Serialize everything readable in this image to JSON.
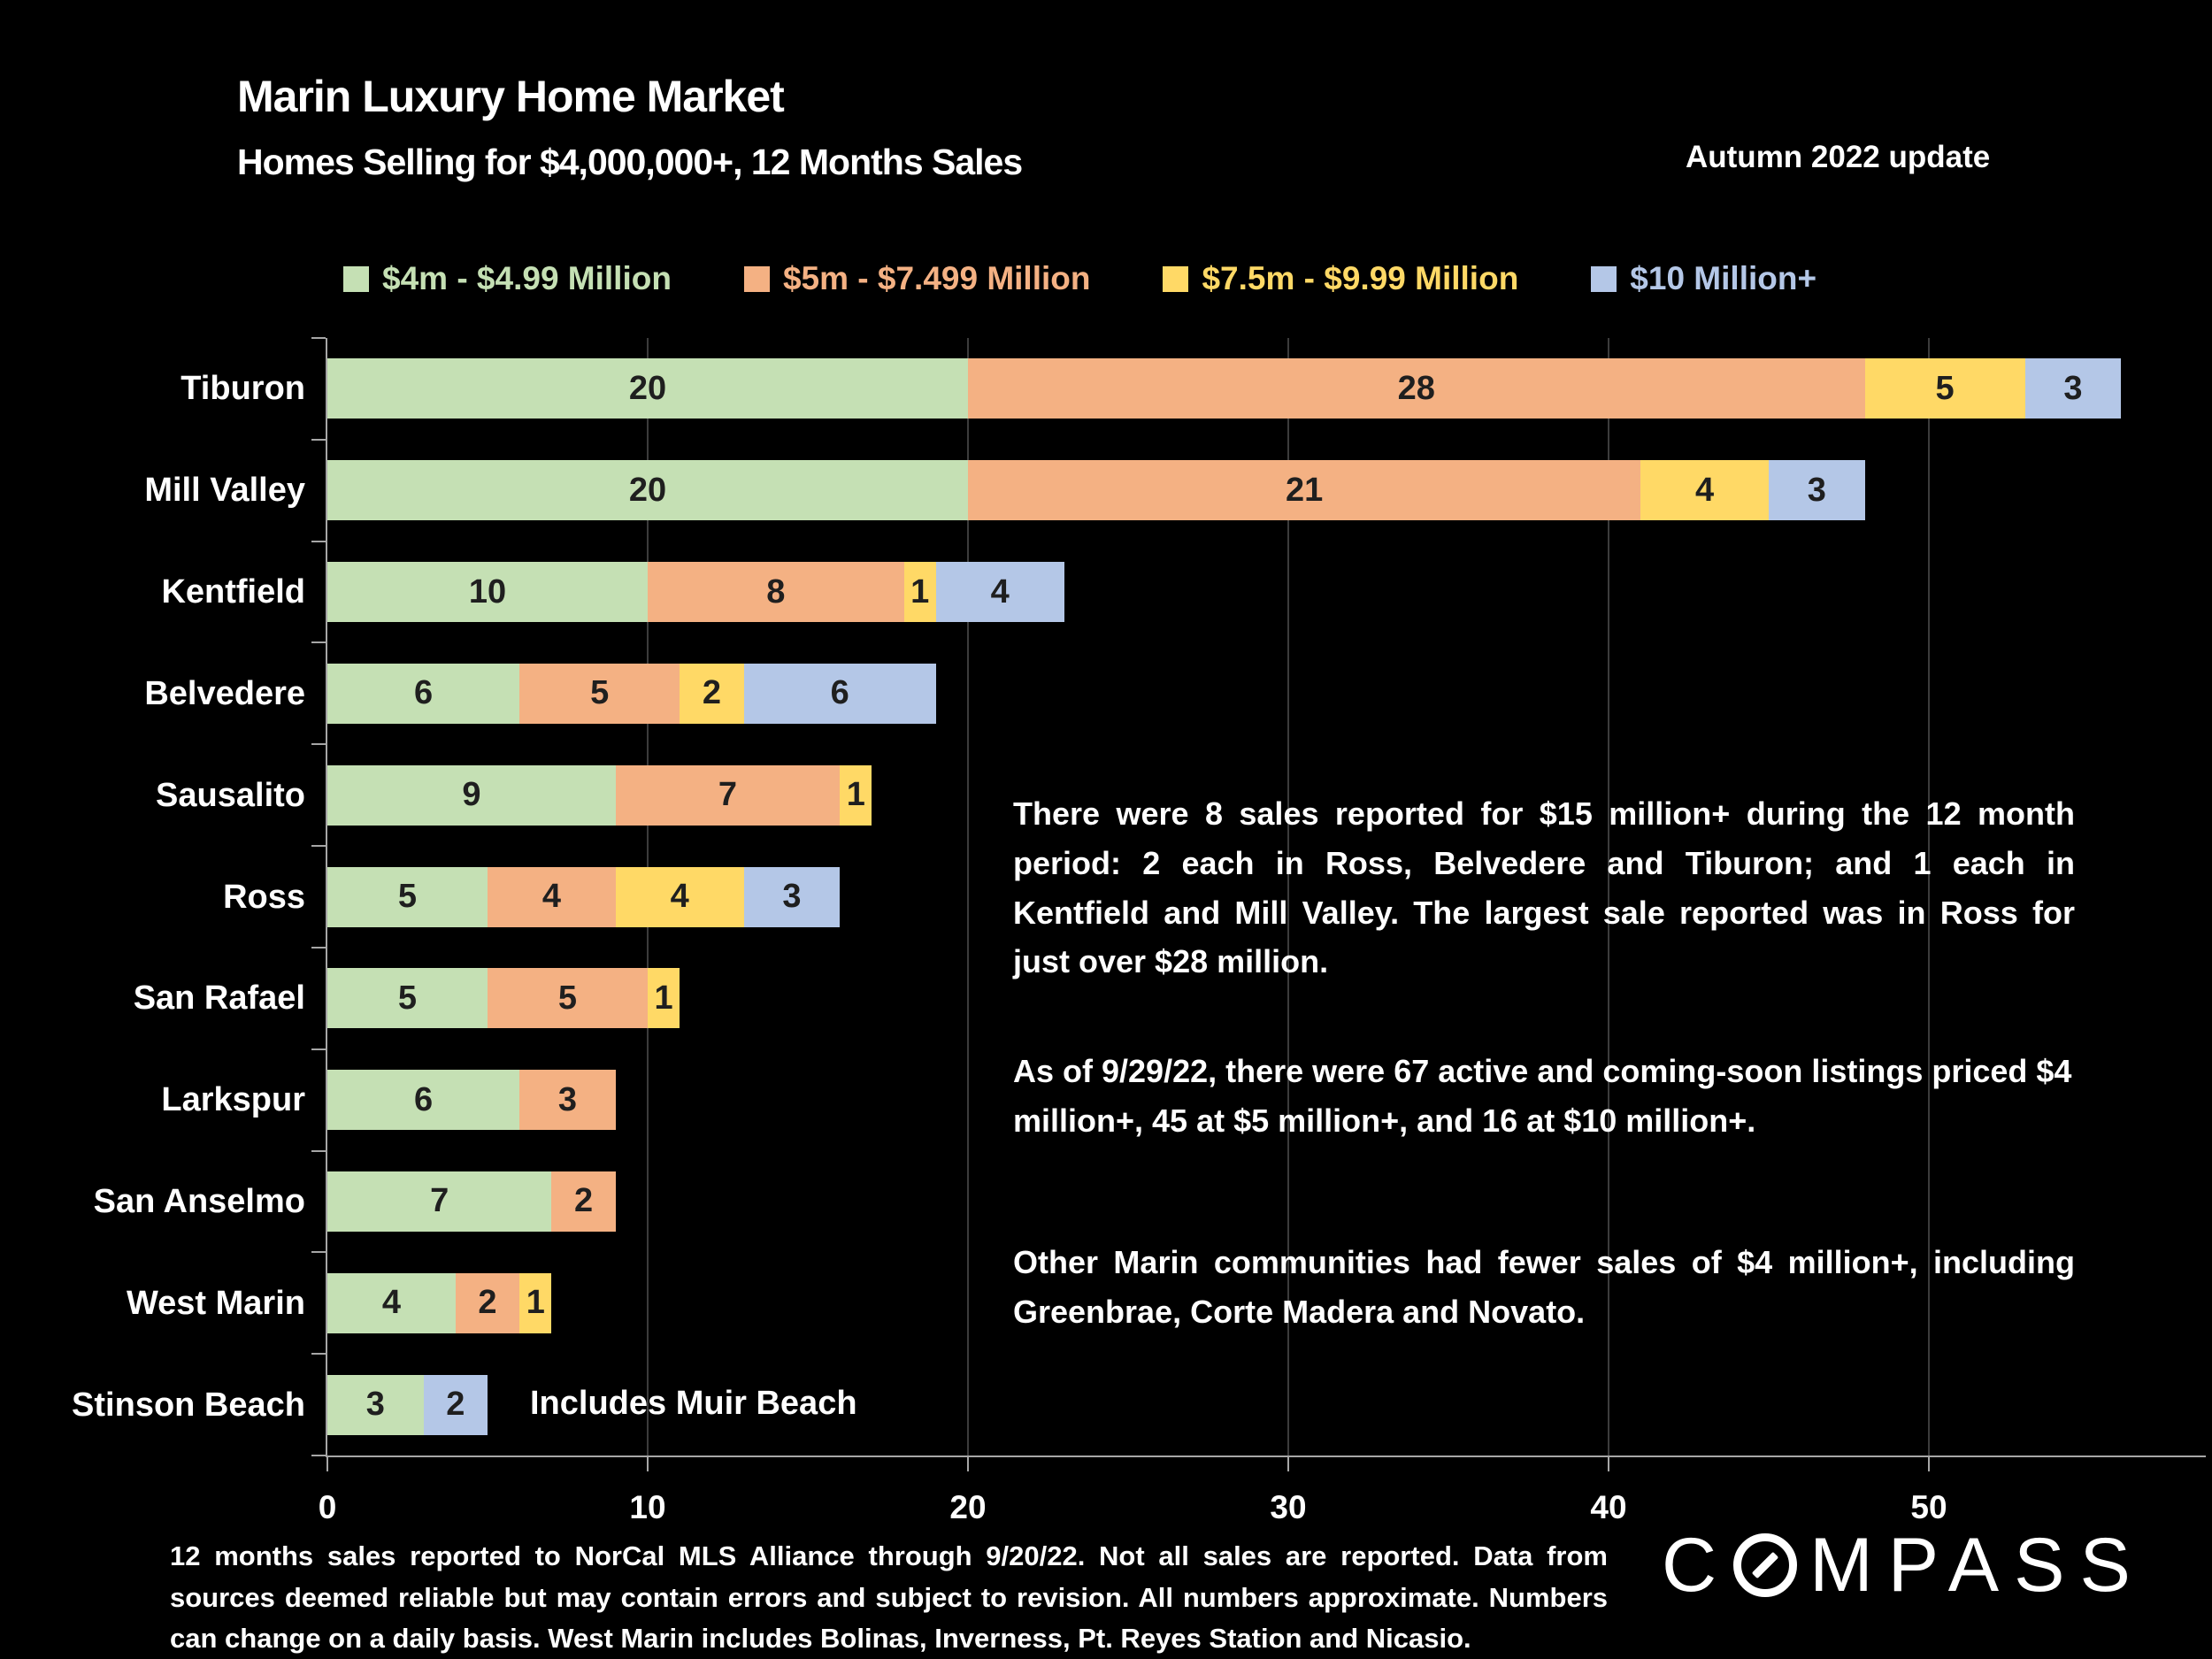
{
  "title": "Marin Luxury Home Market",
  "subtitle": "Homes Selling for $4,000,000+, 12 Months Sales",
  "update_label": "Autumn 2022 update",
  "legend": [
    {
      "label": "$4m - $4.99 Million",
      "color": "#c5e0b4"
    },
    {
      "label": "$5m - $7.499 Million",
      "color": "#f4b183"
    },
    {
      "label": "$7.5m - $9.99 Million",
      "color": "#ffd966"
    },
    {
      "label": "$10 Million+",
      "color": "#b4c7e7"
    }
  ],
  "chart_data": {
    "type": "bar",
    "orientation": "horizontal",
    "stacked": true,
    "title": "Marin Luxury Home Market — Homes Selling for $4,000,000+, 12 Months Sales",
    "xlabel": "",
    "ylabel": "",
    "grid": true,
    "legend_position": "top",
    "xlim": [
      0,
      56
    ],
    "x_ticks": [
      0,
      10,
      20,
      30,
      40,
      50
    ],
    "categories": [
      "Tiburon",
      "Mill Valley",
      "Kentfield",
      "Belvedere",
      "Sausalito",
      "Ross",
      "San Rafael",
      "Larkspur",
      "San Anselmo",
      "West Marin",
      "Stinson Beach"
    ],
    "series": [
      {
        "name": "$4m - $4.99 Million",
        "color": "#c5e0b4",
        "values": [
          20,
          20,
          10,
          6,
          9,
          5,
          5,
          6,
          7,
          4,
          3
        ]
      },
      {
        "name": "$5m - $7.499 Million",
        "color": "#f4b183",
        "values": [
          28,
          21,
          8,
          5,
          7,
          4,
          5,
          3,
          2,
          2,
          0
        ]
      },
      {
        "name": "$7.5m - $9.99 Million",
        "color": "#ffd966",
        "values": [
          5,
          4,
          1,
          2,
          1,
          4,
          1,
          0,
          0,
          1,
          0
        ]
      },
      {
        "name": "$10 Million+",
        "color": "#b4c7e7",
        "values": [
          3,
          3,
          4,
          6,
          0,
          3,
          0,
          0,
          0,
          0,
          2
        ]
      }
    ],
    "annotation": {
      "category": "Stinson Beach",
      "text": "Includes Muir Beach"
    }
  },
  "narrative": {
    "p1": "There were 8 sales reported for $15 million+ during the 12 month period: 2 each in Ross, Belvedere and Tiburon; and 1 each in Kentfield and Mill Valley. The largest sale reported was in Ross for just over $28 million.",
    "p2": "As of 9/29/22, there were 67 active and coming-soon listings priced $4 million+, 45 at $5 million+, and 16 at $10 million+.",
    "p3": "Other Marin communities had fewer sales of $4 million+, including Greenbrae, Corte Madera and Novato."
  },
  "footnote": "12 months sales reported to NorCal MLS Alliance through 9/20/22. Not all sales are reported. Data from sources deemed reliable but may contain errors and subject to revision. All numbers approximate. Numbers can change on a daily basis. West Marin includes Bolinas, Inverness, Pt. Reyes Station and Nicasio.",
  "logo": {
    "prefix": "C",
    "suffix": "MPASS"
  }
}
